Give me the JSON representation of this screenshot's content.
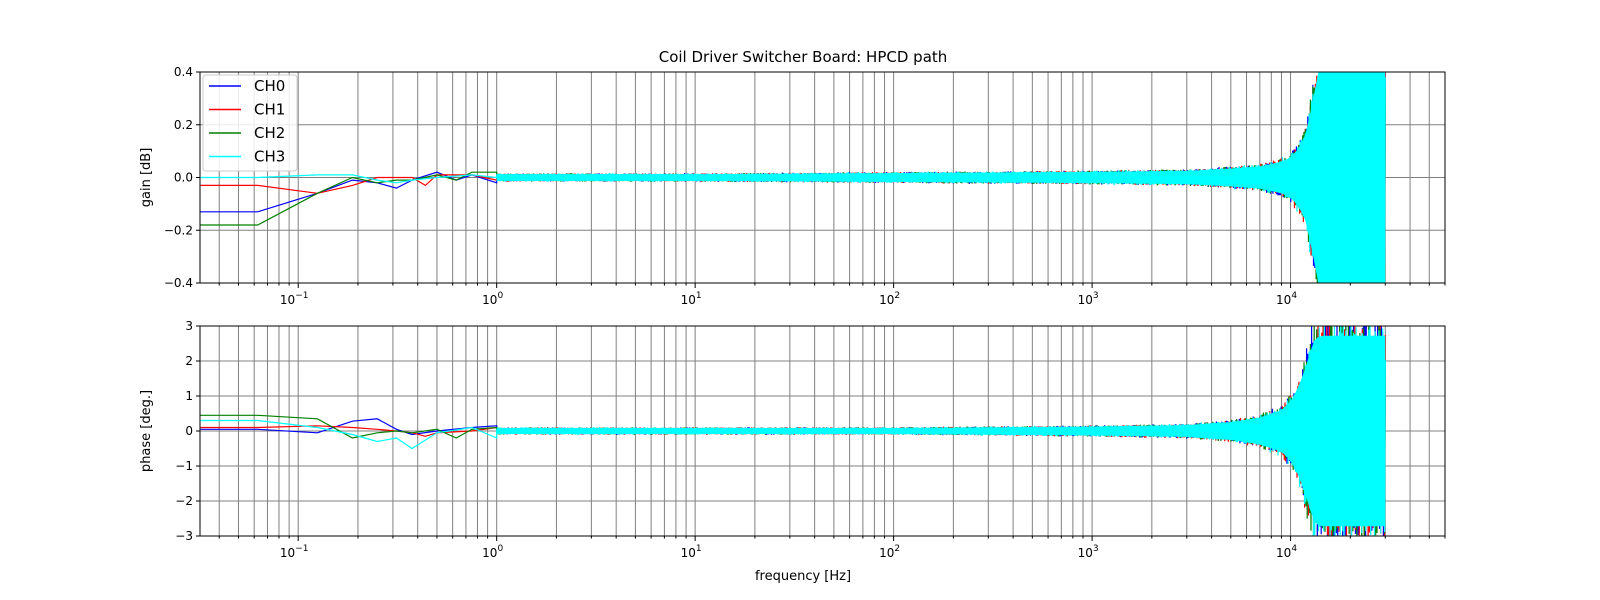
{
  "chart_data": [
    {
      "type": "line",
      "title": "Coil Driver Switcher Board: HPCD path",
      "xlabel": "",
      "ylabel": "gain [dB]",
      "xscale": "log",
      "xlim": [
        0.032,
        60000
      ],
      "ylim": [
        -0.4,
        0.4
      ],
      "yticks": [
        -0.4,
        -0.2,
        0.0,
        0.2,
        0.4
      ],
      "ytick_labels": [
        "−0.4",
        "−0.2",
        "0.0",
        "0.2",
        "0.4"
      ],
      "xticks": [
        0.1,
        1,
        10,
        100,
        1000,
        10000
      ],
      "xtick_labels": [
        {
          "base": "10",
          "exp": "−1"
        },
        {
          "base": "10",
          "exp": "0"
        },
        {
          "base": "10",
          "exp": "1"
        },
        {
          "base": "10",
          "exp": "2"
        },
        {
          "base": "10",
          "exp": "3"
        },
        {
          "base": "10",
          "exp": "4"
        }
      ],
      "grid": "both (major and minor)",
      "legend": "top-left",
      "series": [
        {
          "name": "CH0",
          "color": "#0000ff",
          "x": [
            0.031,
            0.0625,
            0.125,
            0.1875,
            0.25,
            0.3125,
            0.375,
            0.5,
            0.625,
            0.75,
            1.0
          ],
          "y": [
            -0.13,
            -0.13,
            -0.06,
            -0.01,
            -0.02,
            -0.04,
            -0.01,
            0.02,
            -0.01,
            0.01,
            -0.02
          ]
        },
        {
          "name": "CH1",
          "color": "#ff0000",
          "x": [
            0.031,
            0.0625,
            0.125,
            0.1875,
            0.25,
            0.3125,
            0.375,
            0.4375,
            0.5,
            0.75,
            1.0
          ],
          "y": [
            -0.03,
            -0.03,
            -0.06,
            -0.03,
            0.0,
            0.0,
            0.0,
            -0.03,
            0.01,
            0.01,
            -0.01
          ]
        },
        {
          "name": "CH2",
          "color": "#008000",
          "x": [
            0.031,
            0.0625,
            0.125,
            0.1875,
            0.25,
            0.3125,
            0.375,
            0.5,
            0.625,
            0.75,
            1.0
          ],
          "y": [
            -0.18,
            -0.18,
            -0.06,
            0.0,
            -0.02,
            -0.01,
            -0.01,
            0.01,
            -0.01,
            0.02,
            0.02
          ]
        },
        {
          "name": "CH3",
          "color": "#00ffff",
          "x": [
            0.031,
            0.0625,
            0.125,
            0.1875,
            0.25,
            0.3125,
            0.375,
            0.5,
            0.75,
            1.0
          ],
          "y": [
            0.0,
            0.0,
            0.01,
            0.01,
            -0.01,
            -0.02,
            -0.01,
            0.0,
            0.01,
            0.0
          ]
        }
      ],
      "noise_envelope": {
        "x": [
          1,
          10,
          100,
          1000,
          3000,
          5000,
          7000,
          9000,
          10000,
          11000,
          12000,
          13000,
          14000,
          30000
        ],
        "spread": [
          0.015,
          0.015,
          0.02,
          0.025,
          0.03,
          0.04,
          0.05,
          0.07,
          0.09,
          0.13,
          0.2,
          0.35,
          0.5,
          0.5
        ]
      }
    },
    {
      "type": "line",
      "title": "",
      "xlabel": "frequency [Hz]",
      "ylabel": "phase [deg.]",
      "xscale": "log",
      "xlim": [
        0.032,
        60000
      ],
      "ylim": [
        -3,
        3
      ],
      "yticks": [
        -3,
        -2,
        -1,
        0,
        1,
        2,
        3
      ],
      "ytick_labels": [
        "−3",
        "−2",
        "−1",
        "0",
        "1",
        "2",
        "3"
      ],
      "xticks": [
        0.1,
        1,
        10,
        100,
        1000,
        10000
      ],
      "xtick_labels": [
        {
          "base": "10",
          "exp": "−1"
        },
        {
          "base": "10",
          "exp": "0"
        },
        {
          "base": "10",
          "exp": "1"
        },
        {
          "base": "10",
          "exp": "2"
        },
        {
          "base": "10",
          "exp": "3"
        },
        {
          "base": "10",
          "exp": "4"
        }
      ],
      "grid": "both (major and minor)",
      "series": [
        {
          "name": "CH0",
          "color": "#0000ff",
          "x": [
            0.031,
            0.0625,
            0.125,
            0.1875,
            0.25,
            0.3125,
            0.375,
            0.5,
            0.75,
            1.0
          ],
          "y": [
            0.05,
            0.05,
            -0.05,
            0.28,
            0.35,
            0.05,
            -0.1,
            0.0,
            0.1,
            0.15
          ]
        },
        {
          "name": "CH1",
          "color": "#ff0000",
          "x": [
            0.031,
            0.0625,
            0.125,
            0.1875,
            0.25,
            0.3125,
            0.375,
            0.4375,
            0.5,
            0.75,
            1.0
          ],
          "y": [
            0.1,
            0.1,
            0.15,
            0.1,
            0.05,
            0.0,
            -0.05,
            -0.15,
            -0.05,
            0.0,
            0.1
          ]
        },
        {
          "name": "CH2",
          "color": "#008000",
          "x": [
            0.031,
            0.0625,
            0.125,
            0.1875,
            0.25,
            0.3125,
            0.375,
            0.5,
            0.625,
            0.75,
            1.0
          ],
          "y": [
            0.45,
            0.45,
            0.35,
            -0.2,
            -0.05,
            0.0,
            -0.05,
            0.05,
            -0.2,
            0.05,
            0.1
          ]
        },
        {
          "name": "CH3",
          "color": "#00ffff",
          "x": [
            0.031,
            0.0625,
            0.125,
            0.1875,
            0.25,
            0.3125,
            0.375,
            0.5,
            0.75,
            1.0
          ],
          "y": [
            0.3,
            0.3,
            0.1,
            -0.1,
            -0.3,
            -0.2,
            -0.5,
            -0.05,
            0.1,
            -0.2
          ]
        }
      ],
      "noise_envelope": {
        "x": [
          1,
          10,
          100,
          1000,
          3000,
          5000,
          7000,
          9000,
          10000,
          11000,
          12000,
          13000,
          14000,
          30000
        ],
        "spread": [
          0.1,
          0.1,
          0.1,
          0.15,
          0.2,
          0.3,
          0.45,
          0.7,
          1.0,
          1.5,
          2.2,
          3.0,
          3.2,
          3.2
        ]
      }
    }
  ]
}
